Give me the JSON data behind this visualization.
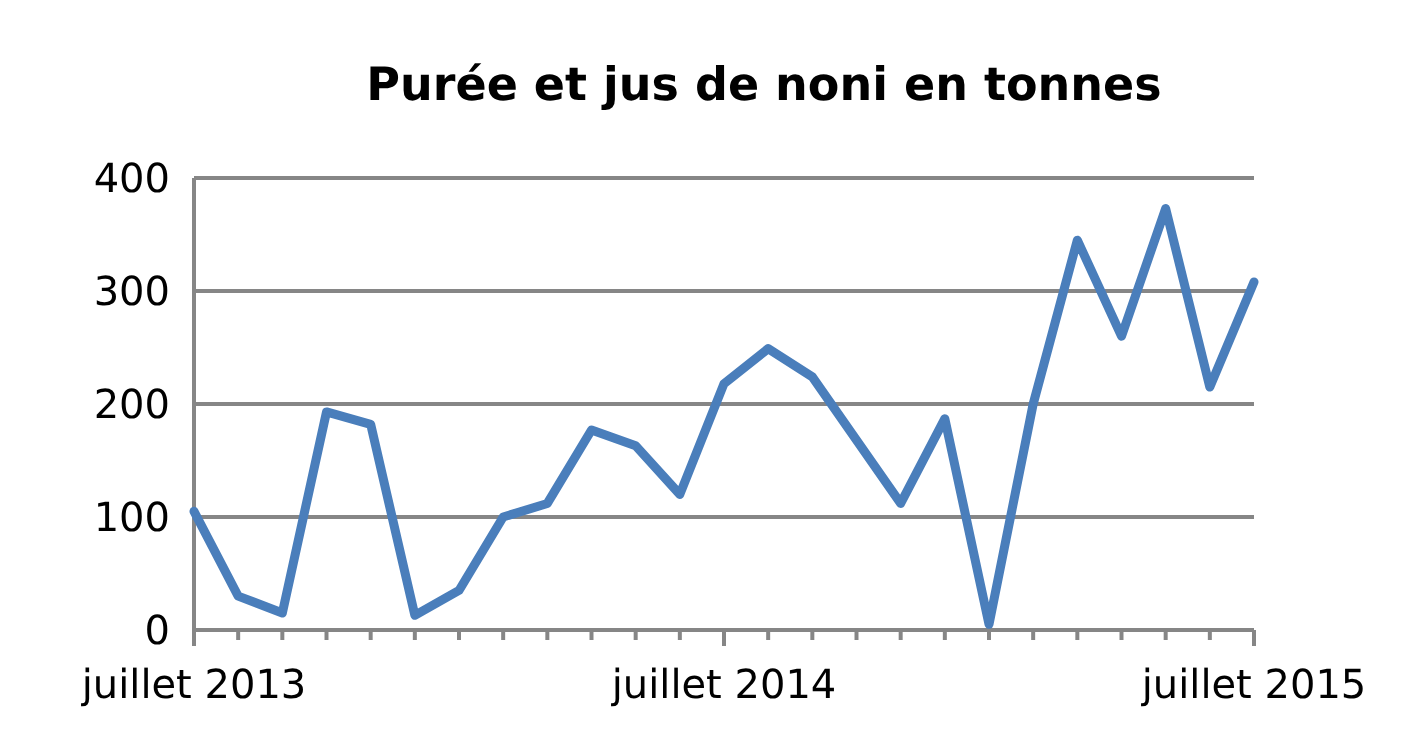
{
  "chart_data": {
    "type": "line",
    "title": "Purée et jus de noni en tonnes",
    "categories": [
      "juillet 2013",
      null,
      null,
      null,
      null,
      null,
      null,
      null,
      null,
      null,
      null,
      null,
      "juillet 2014",
      null,
      null,
      null,
      null,
      null,
      null,
      null,
      null,
      null,
      null,
      null,
      "juillet 2015"
    ],
    "series": [
      {
        "color": "#4a7ebb",
        "values": [
          105,
          30,
          15,
          193,
          182,
          13,
          35,
          100,
          112,
          177,
          163,
          120,
          218,
          249,
          224,
          168,
          112,
          187,
          5,
          200,
          345,
          260,
          373,
          215,
          308
        ]
      }
    ],
    "ylim": [
      0,
      400
    ],
    "yticks": [
      0,
      100,
      200,
      300,
      400
    ],
    "grid": "y",
    "marker": "none",
    "line_style": "solid"
  }
}
